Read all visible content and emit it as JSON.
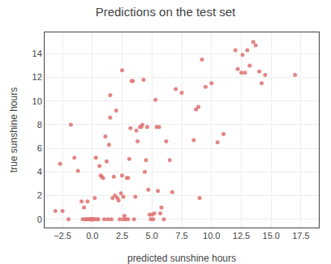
{
  "chart_data": {
    "type": "scatter",
    "title": "Predictions on the test set",
    "xlabel": "predicted sunshine hours",
    "ylabel": "true sunshine hours",
    "color": "#e07878",
    "grid": true,
    "xlim": [
      -4.0,
      19.0
    ],
    "ylim": [
      -0.7,
      15.8
    ],
    "xticks": [
      {
        "value": -2.5,
        "label": "−2.5"
      },
      {
        "value": 0.0,
        "label": "0.0"
      },
      2.5,
      {
        "value": 5.0,
        "label": "5.0"
      },
      7.5,
      {
        "value": 10.0,
        "label": "10.0"
      },
      12.5,
      {
        "value": 15.0,
        "label": "15.0"
      },
      17.5
    ],
    "yticks": [
      0,
      2,
      4,
      6,
      8,
      10,
      12,
      14
    ],
    "x": [
      -3.1,
      -2.7,
      -2.5,
      -2.0,
      -1.8,
      -1.5,
      -1.2,
      -0.9,
      -0.8,
      -0.7,
      -0.6,
      -0.5,
      -0.5,
      -0.4,
      -0.3,
      -0.2,
      -0.2,
      -0.1,
      -0.1,
      0.0,
      0.0,
      0.0,
      0.0,
      0.1,
      0.1,
      0.2,
      0.2,
      0.3,
      0.4,
      0.5,
      0.6,
      0.7,
      0.8,
      0.9,
      1.0,
      1.1,
      1.2,
      1.3,
      1.4,
      1.5,
      1.5,
      1.6,
      1.7,
      1.8,
      1.9,
      2.0,
      2.1,
      2.2,
      2.3,
      2.4,
      2.5,
      2.5,
      2.6,
      2.6,
      2.7,
      2.8,
      2.9,
      3.0,
      3.0,
      3.1,
      3.2,
      3.3,
      3.4,
      3.5,
      3.6,
      3.7,
      3.8,
      4.0,
      4.1,
      4.2,
      4.3,
      4.4,
      4.5,
      4.6,
      4.7,
      4.8,
      4.9,
      5.0,
      5.1,
      5.2,
      5.3,
      5.4,
      5.5,
      5.6,
      5.7,
      5.8,
      6.0,
      6.2,
      6.5,
      6.7,
      7.0,
      7.5,
      8.5,
      8.7,
      8.9,
      9.0,
      9.2,
      9.5,
      10.0,
      10.5,
      11.0,
      12.0,
      12.2,
      12.5,
      12.6,
      12.8,
      13.0,
      13.2,
      13.5,
      13.7,
      14.0,
      14.2,
      14.5,
      17.0
    ],
    "values": [
      0.7,
      4.7,
      0.7,
      0.0,
      8.0,
      5.2,
      4.1,
      1.5,
      0.0,
      1.0,
      0.0,
      0.0,
      0.0,
      1.5,
      0.0,
      0.0,
      0.0,
      0.0,
      0.0,
      0.0,
      0.0,
      0.0,
      0.0,
      0.0,
      0.0,
      0.0,
      1.8,
      5.2,
      0.0,
      0.0,
      4.5,
      3.7,
      3.6,
      3.5,
      0.0,
      7.0,
      4.9,
      0.0,
      6.3,
      8.6,
      10.5,
      0.0,
      1.8,
      3.6,
      2.0,
      9.2,
      1.8,
      1.6,
      0.0,
      2.2,
      3.7,
      12.6,
      1.9,
      0.0,
      0.3,
      0.0,
      3.5,
      3.5,
      0.0,
      5.1,
      7.7,
      11.7,
      11.7,
      0.0,
      1.9,
      7.5,
      6.6,
      7.8,
      7.8,
      8.0,
      11.8,
      4.0,
      5.0,
      7.8,
      2.5,
      0.4,
      0.0,
      0.4,
      0.0,
      0.5,
      10.1,
      7.8,
      2.4,
      7.8,
      0.5,
      1.0,
      0.0,
      6.6,
      5.0,
      2.3,
      11.0,
      10.7,
      6.7,
      9.3,
      9.5,
      1.8,
      13.5,
      11.2,
      11.5,
      6.5,
      7.2,
      14.3,
      12.7,
      12.4,
      13.9,
      12.4,
      14.3,
      13.0,
      15.0,
      14.7,
      12.5,
      11.5,
      12.2,
      12.2
    ]
  }
}
